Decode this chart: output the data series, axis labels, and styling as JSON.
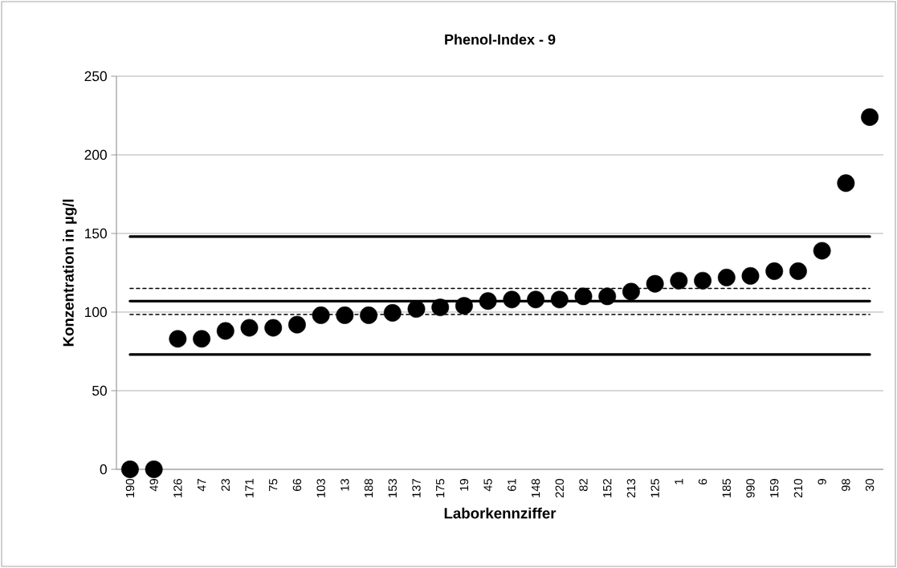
{
  "chart_data": {
    "type": "scatter",
    "title": "Phenol-Index - 9",
    "xlabel": "Laborkennziffer",
    "ylabel": "Konzentration in µg/l",
    "categories": [
      "190",
      "49",
      "126",
      "47",
      "23",
      "171",
      "75",
      "66",
      "103",
      "13",
      "188",
      "153",
      "137",
      "175",
      "19",
      "45",
      "61",
      "148",
      "220",
      "82",
      "152",
      "213",
      "125",
      "1",
      "6",
      "185",
      "990",
      "159",
      "210",
      "9",
      "98",
      "30"
    ],
    "series": [
      {
        "color": "#000000",
        "values": [
          0,
          0,
          83,
          83,
          88,
          90,
          90,
          92,
          98,
          98,
          98,
          99.5,
          102,
          103,
          104,
          107,
          108,
          108,
          108,
          110,
          110,
          113,
          118,
          120,
          120,
          122,
          123,
          126,
          126,
          139,
          182,
          224
        ]
      }
    ],
    "marker": "circle",
    "ylim": [
      0,
      250
    ],
    "yticks": [
      0,
      50,
      100,
      150,
      200,
      250
    ],
    "grid": "y",
    "ref_lines": [
      {
        "axis": "y",
        "value": 148,
        "color": "#000000",
        "line_style": "solid"
      },
      {
        "axis": "y",
        "value": 115,
        "color": "#000000",
        "line_style": "dashed"
      },
      {
        "axis": "y",
        "value": 107,
        "color": "#000000",
        "line_style": "solid"
      },
      {
        "axis": "y",
        "value": 98.5,
        "color": "#000000",
        "line_style": "dashed"
      },
      {
        "axis": "y",
        "value": 73,
        "color": "#000000",
        "line_style": "solid"
      }
    ]
  }
}
